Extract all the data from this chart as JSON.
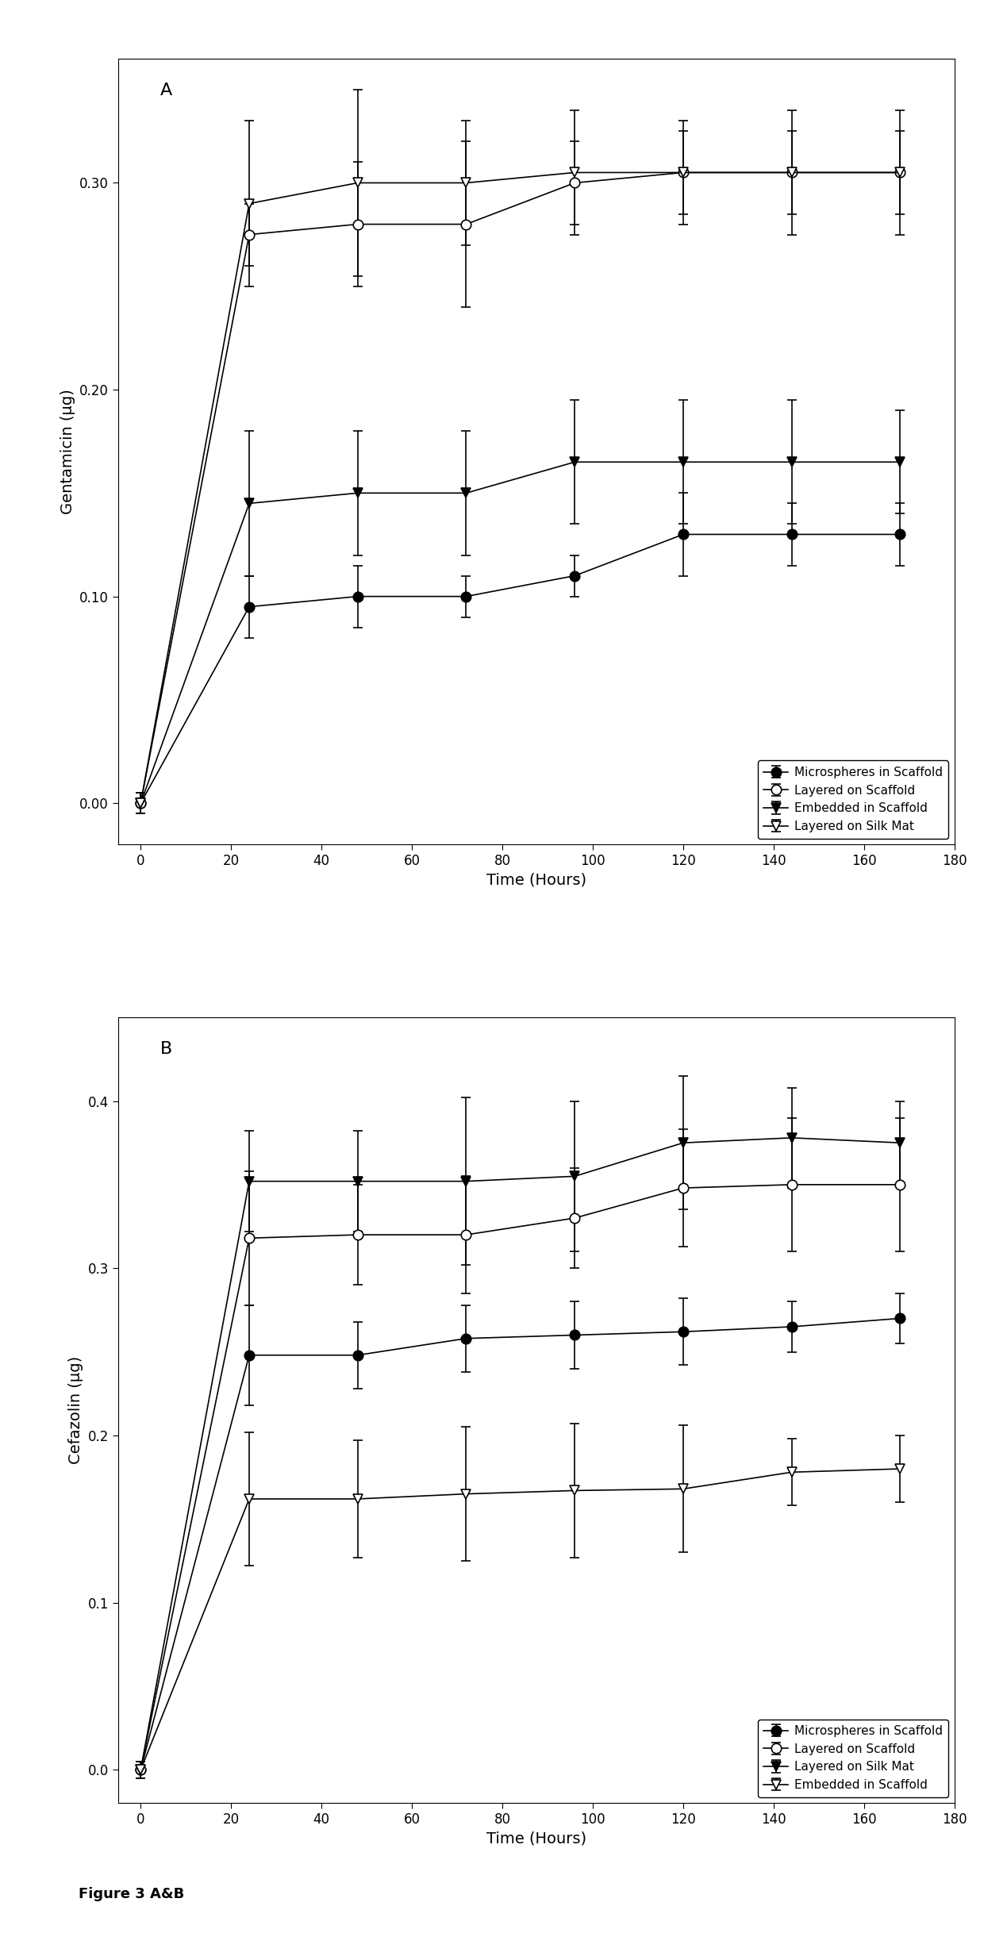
{
  "panel_A": {
    "label": "A",
    "xlabel": "Time (Hours)",
    "ylabel": "Gentamicin (μg)",
    "xlim": [
      -5,
      180
    ],
    "ylim": [
      -0.02,
      0.36
    ],
    "yticks": [
      0.0,
      0.1,
      0.2,
      0.3
    ],
    "xticks": [
      0,
      20,
      40,
      60,
      80,
      100,
      120,
      140,
      160,
      180
    ],
    "series": [
      {
        "label": "Microspheres in Scaffold",
        "marker": "o",
        "fillstyle": "full",
        "color": "black",
        "x": [
          0,
          24,
          48,
          72,
          96,
          120,
          144,
          168
        ],
        "y": [
          0.0,
          0.095,
          0.1,
          0.1,
          0.11,
          0.13,
          0.13,
          0.13
        ],
        "yerr": [
          0.005,
          0.015,
          0.015,
          0.01,
          0.01,
          0.02,
          0.015,
          0.015
        ]
      },
      {
        "label": "Layered on Scaffold",
        "marker": "o",
        "fillstyle": "none",
        "color": "black",
        "x": [
          0,
          24,
          48,
          72,
          96,
          120,
          144,
          168
        ],
        "y": [
          0.0,
          0.275,
          0.28,
          0.28,
          0.3,
          0.305,
          0.305,
          0.305
        ],
        "yerr": [
          0.005,
          0.015,
          0.03,
          0.04,
          0.02,
          0.02,
          0.02,
          0.02
        ]
      },
      {
        "label": "Embedded in Scaffold",
        "marker": "v",
        "fillstyle": "full",
        "color": "black",
        "x": [
          0,
          24,
          48,
          72,
          96,
          120,
          144,
          168
        ],
        "y": [
          0.0,
          0.145,
          0.15,
          0.15,
          0.165,
          0.165,
          0.165,
          0.165
        ],
        "yerr": [
          0.005,
          0.035,
          0.03,
          0.03,
          0.03,
          0.03,
          0.03,
          0.025
        ]
      },
      {
        "label": "Layered on Silk Mat",
        "marker": "v",
        "fillstyle": "none",
        "color": "black",
        "x": [
          0,
          24,
          48,
          72,
          96,
          120,
          144,
          168
        ],
        "y": [
          0.0,
          0.29,
          0.3,
          0.3,
          0.305,
          0.305,
          0.305,
          0.305
        ],
        "yerr": [
          0.005,
          0.04,
          0.045,
          0.03,
          0.03,
          0.025,
          0.03,
          0.03
        ]
      }
    ]
  },
  "panel_B": {
    "label": "B",
    "xlabel": "Time (Hours)",
    "ylabel": "Cefazolin (μg)",
    "xlim": [
      -5,
      180
    ],
    "ylim": [
      -0.02,
      0.45
    ],
    "yticks": [
      0.0,
      0.1,
      0.2,
      0.3,
      0.4
    ],
    "xticks": [
      0,
      20,
      40,
      60,
      80,
      100,
      120,
      140,
      160,
      180
    ],
    "series": [
      {
        "label": "Microspheres in Scaffold",
        "marker": "o",
        "fillstyle": "full",
        "color": "black",
        "x": [
          0,
          24,
          48,
          72,
          96,
          120,
          144,
          168
        ],
        "y": [
          0.0,
          0.248,
          0.248,
          0.258,
          0.26,
          0.262,
          0.265,
          0.27
        ],
        "yerr": [
          0.005,
          0.03,
          0.02,
          0.02,
          0.02,
          0.02,
          0.015,
          0.015
        ]
      },
      {
        "label": "Layered on Scaffold",
        "marker": "o",
        "fillstyle": "none",
        "color": "black",
        "x": [
          0,
          24,
          48,
          72,
          96,
          120,
          144,
          168
        ],
        "y": [
          0.0,
          0.318,
          0.32,
          0.32,
          0.33,
          0.348,
          0.35,
          0.35
        ],
        "yerr": [
          0.005,
          0.04,
          0.03,
          0.035,
          0.03,
          0.035,
          0.04,
          0.04
        ]
      },
      {
        "label": "Layered on Silk Mat",
        "marker": "v",
        "fillstyle": "full",
        "color": "black",
        "x": [
          0,
          24,
          48,
          72,
          96,
          120,
          144,
          168
        ],
        "y": [
          0.0,
          0.352,
          0.352,
          0.352,
          0.355,
          0.375,
          0.378,
          0.375
        ],
        "yerr": [
          0.005,
          0.03,
          0.03,
          0.05,
          0.045,
          0.04,
          0.03,
          0.025
        ]
      },
      {
        "label": "Embedded in Scaffold",
        "marker": "v",
        "fillstyle": "none",
        "color": "black",
        "x": [
          0,
          24,
          48,
          72,
          96,
          120,
          144,
          168
        ],
        "y": [
          0.0,
          0.162,
          0.162,
          0.165,
          0.167,
          0.168,
          0.178,
          0.18
        ],
        "yerr": [
          0.005,
          0.04,
          0.035,
          0.04,
          0.04,
          0.038,
          0.02,
          0.02
        ]
      }
    ]
  },
  "figure_caption": "Figure 3 A&B",
  "background_color": "#ffffff",
  "font_family": "DejaVu Sans"
}
